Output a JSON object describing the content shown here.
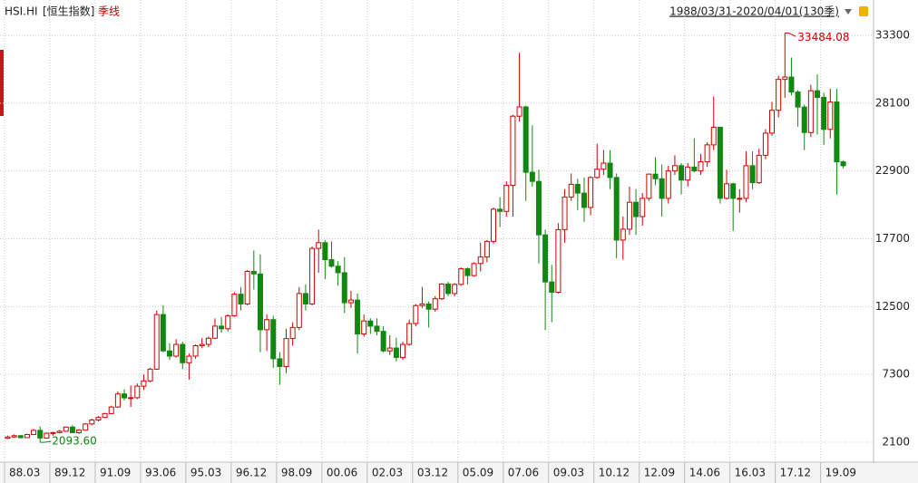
{
  "header": {
    "symbol": "HSI.HI",
    "name": "[恒生指数]",
    "period": "季线",
    "range": "1988/03/31-2020/04/01(130季)"
  },
  "chart_data": {
    "type": "candlestick",
    "categories": [
      "88.03",
      null,
      null,
      null,
      null,
      null,
      null,
      "89.12",
      null,
      null,
      null,
      null,
      null,
      null,
      "91.09",
      null,
      null,
      null,
      null,
      null,
      null,
      "93.06",
      null,
      null,
      null,
      null,
      null,
      null,
      "95.03",
      null,
      null,
      null,
      null,
      null,
      null,
      "96.12",
      null,
      null,
      null,
      null,
      null,
      null,
      "98.09",
      null,
      null,
      null,
      null,
      null,
      null,
      "00.06",
      null,
      null,
      null,
      null,
      null,
      null,
      "02.03",
      null,
      null,
      null,
      null,
      null,
      null,
      "03.12",
      null,
      null,
      null,
      null,
      null,
      null,
      "05.09",
      null,
      null,
      null,
      null,
      null,
      null,
      "07.06",
      null,
      null,
      null,
      null,
      null,
      null,
      "09.03",
      null,
      null,
      null,
      null,
      null,
      null,
      "10.12",
      null,
      null,
      null,
      null,
      null,
      null,
      "12.09",
      null,
      null,
      null,
      null,
      null,
      null,
      "14.06",
      null,
      null,
      null,
      null,
      null,
      null,
      "16.03",
      null,
      null,
      null,
      null,
      null,
      null,
      "17.12",
      null,
      null,
      null,
      null,
      null,
      null,
      "19.09",
      null,
      null,
      null
    ],
    "open": [
      2400,
      2500,
      2600,
      2450,
      2687,
      3010,
      2420,
      2790,
      2837,
      2940,
      3260,
      2830,
      3025,
      3500,
      3800,
      4000,
      4297,
      4800,
      5800,
      5500,
      5512,
      6400,
      6800,
      7700,
      11888,
      9100,
      8700,
      9600,
      8191,
      8700,
      9500,
      9600,
      10073,
      11000,
      10800,
      11800,
      13451,
      12700,
      15200,
      15000,
      10723,
      11500,
      8500,
      7900,
      10049,
      10900,
      13500,
      12700,
      16962,
      17400,
      16100,
      15600,
      15096,
      12800,
      13000,
      10400,
      11397,
      11000,
      10600,
      9100,
      9321,
      8600,
      9600,
      11200,
      12576,
      12700,
      12300,
      13100,
      14230,
      13500,
      14200,
      15400,
      14876,
      15800,
      16300,
      17500,
      19965,
      19800,
      21800,
      27100,
      27813,
      22800,
      22100,
      18000,
      14387,
      13600,
      18400,
      20900,
      21873,
      21200,
      20100,
      22400,
      23035,
      23500,
      22400,
      17600,
      18434,
      20500,
      19400,
      20800,
      22657,
      22300,
      20800,
      22900,
      23306,
      22200,
      23200,
      22900,
      23605,
      24900,
      26250,
      20800,
      21914,
      20800,
      20800,
      23300,
      22001,
      24100,
      25800,
      27550,
      29919,
      30100,
      28950,
      27800,
      25846,
      29050,
      28540,
      26090,
      28190,
      23600
    ],
    "high": [
      2600,
      2700,
      2650,
      2750,
      3100,
      3310,
      2850,
      2900,
      3050,
      3300,
      3400,
      3100,
      3550,
      3900,
      4100,
      4350,
      4900,
      6000,
      6150,
      6450,
      6600,
      7300,
      7800,
      12200,
      12600,
      9700,
      10000,
      9800,
      8900,
      9600,
      10100,
      10200,
      11600,
      11700,
      11900,
      13600,
      14000,
      15300,
      16800,
      16500,
      11900,
      11800,
      9000,
      10800,
      11300,
      14000,
      14200,
      17100,
      18400,
      17600,
      17500,
      16000,
      16300,
      13700,
      13500,
      11900,
      11600,
      11600,
      11000,
      10300,
      10100,
      9800,
      11500,
      12700,
      14000,
      12900,
      13300,
      14300,
      14400,
      14300,
      15500,
      15500,
      15900,
      17400,
      17600,
      20100,
      20900,
      22100,
      27200,
      31960,
      27900,
      26400,
      23000,
      18400,
      15700,
      18900,
      21500,
      22700,
      22300,
      22400,
      22500,
      24990,
      24500,
      24500,
      22700,
      19400,
      21700,
      21500,
      21200,
      22700,
      23950,
      23400,
      23300,
      24100,
      23500,
      23500,
      25400,
      24200,
      25100,
      28600,
      26300,
      23000,
      22000,
      21500,
      24400,
      24400,
      24600,
      26100,
      28200,
      30200,
      33484.08,
      31600,
      29100,
      28000,
      29500,
      30300,
      28900,
      29200,
      29200,
      23700
    ],
    "low": [
      2350,
      2450,
      2400,
      2430,
      2650,
      2093.6,
      2380,
      2600,
      2780,
      2900,
      2800,
      2740,
      2990,
      3400,
      3700,
      3950,
      4250,
      4750,
      5300,
      4800,
      5400,
      6100,
      6700,
      7650,
      9000,
      8400,
      8600,
      7700,
      6900,
      8500,
      9300,
      9400,
      10000,
      10500,
      10600,
      11700,
      12200,
      12600,
      13800,
      9000,
      9100,
      7800,
      6500,
      7400,
      9500,
      10700,
      12200,
      12600,
      15100,
      14600,
      15500,
      14100,
      12000,
      12400,
      8900,
      10200,
      10400,
      10300,
      9000,
      8800,
      8300,
      8400,
      9500,
      11000,
      12400,
      10900,
      12100,
      13000,
      13300,
      13300,
      14100,
      14200,
      14800,
      15200,
      15900,
      17300,
      18600,
      19400,
      19400,
      26700,
      20600,
      21700,
      15800,
      10700,
      11300,
      13500,
      17400,
      20600,
      19900,
      19000,
      19500,
      22300,
      22600,
      21500,
      16200,
      16100,
      18000,
      18000,
      18700,
      20600,
      21800,
      19400,
      20400,
      22600,
      21100,
      21700,
      22800,
      22600,
      23200,
      24500,
      20400,
      20700,
      18300,
      19700,
      20500,
      21500,
      21900,
      23800,
      25600,
      27000,
      28500,
      28700,
      26300,
      24500,
      25500,
      25700,
      24900,
      25400,
      21100,
      23100
    ],
    "close": [
      2500,
      2600,
      2450,
      2687,
      3010,
      2420,
      2790,
      2837,
      2940,
      3260,
      2830,
      3025,
      3500,
      3800,
      4000,
      4297,
      4800,
      5800,
      5500,
      5512,
      6400,
      6800,
      7700,
      11888,
      9100,
      8700,
      9600,
      8191,
      8700,
      9500,
      9600,
      10073,
      11000,
      10800,
      11800,
      13451,
      12700,
      15200,
      15000,
      10723,
      11500,
      8500,
      7900,
      10049,
      10900,
      13500,
      12700,
      16962,
      17400,
      16100,
      15600,
      15096,
      12800,
      13000,
      10400,
      11397,
      11000,
      10600,
      9100,
      9321,
      8600,
      9600,
      11200,
      12576,
      12700,
      12300,
      13100,
      14230,
      13500,
      14200,
      15400,
      14876,
      15800,
      16300,
      17500,
      19965,
      19800,
      21800,
      27100,
      27813,
      22800,
      22100,
      18000,
      14387,
      13600,
      18400,
      20900,
      21873,
      21200,
      20100,
      22400,
      23035,
      23500,
      22400,
      17600,
      18434,
      20500,
      19400,
      20800,
      22657,
      22300,
      20800,
      22900,
      23306,
      22200,
      23200,
      22900,
      23605,
      24900,
      26250,
      20800,
      21914,
      20800,
      20800,
      23300,
      22001,
      24100,
      25800,
      27550,
      29919,
      30100,
      28950,
      27800,
      25846,
      29050,
      28540,
      26090,
      28190,
      23600,
      23300
    ],
    "high_label": "33484.08",
    "low_label": "2093.60",
    "up_color": "#d00000",
    "down_color": "#118811",
    "ylim": [
      570,
      34480
    ],
    "yticks": [
      2100,
      7300,
      12500,
      17700,
      22900,
      28100,
      33300
    ],
    "grid": true
  }
}
